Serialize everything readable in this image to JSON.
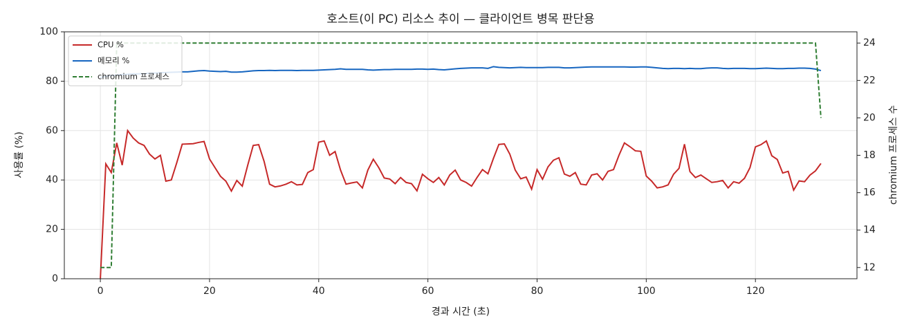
{
  "chart_data": {
    "type": "line",
    "title": "호스트(이 PC) 리소스 추이 — 클라이언트 병목 판단용",
    "x_label": "경과 시간 (초)",
    "y_label": "사용률 (%)",
    "y2_label": "chromium 프로세스 수",
    "xlim": [
      -6.6,
      138.6
    ],
    "xticks": [
      0,
      20,
      40,
      60,
      80,
      100,
      120
    ],
    "ylim": [
      0,
      100
    ],
    "yticks": [
      0,
      20,
      40,
      60,
      80,
      100
    ],
    "y2lim": [
      11.4,
      24.6
    ],
    "y2ticks": [
      12,
      14,
      16,
      18,
      20,
      22,
      24
    ],
    "grid": true,
    "legend": "upper-left",
    "series": [
      {
        "name": "CPU %",
        "color": "#c62828",
        "values": [
          0,
          46.5,
          43,
          55,
          46,
          60,
          57,
          55,
          54,
          50.5,
          48.5,
          50,
          39.5,
          40,
          47,
          54.5,
          54.6,
          54.7,
          55.2,
          55.6,
          48.5,
          45,
          41.5,
          39.5,
          35.5,
          39.8,
          37.5,
          46,
          54,
          54.3,
          47.5,
          38.3,
          37.2,
          37.6,
          38.3,
          39.3,
          38,
          38.2,
          43,
          44.2,
          55.3,
          55.8,
          50,
          51.5,
          44,
          38.3,
          38.8,
          39.2,
          36.8,
          44,
          48.4,
          45,
          40.8,
          40.4,
          38.5,
          41,
          39,
          38.5,
          35.6,
          42.3,
          40.5,
          39,
          41,
          38,
          42,
          44,
          40,
          39,
          37.5,
          41,
          44.2,
          42.5,
          48.7,
          54.4,
          54.6,
          50.5,
          44,
          40.5,
          41.2,
          36.3,
          44.2,
          40.3,
          45.3,
          48,
          49,
          42.4,
          41.5,
          43,
          38.3,
          38,
          42,
          42.5,
          40,
          43.5,
          44.2,
          50,
          55,
          53.5,
          51.8,
          51.6,
          41.6,
          39.5,
          36.8,
          37.2,
          38,
          42.3,
          44.7,
          54.5,
          43.4,
          41,
          42,
          40.5,
          39,
          39.3,
          39.8,
          36.8,
          39.3,
          38.7,
          40.7,
          45,
          53.4,
          54.3,
          55.8,
          49.8,
          48.3,
          42.8,
          43.5,
          35.9,
          39.6,
          39.3,
          42,
          43.7,
          46.7
        ]
      },
      {
        "name": "메모리 %",
        "color": "#1565c0",
        "values": [
          81.5,
          82,
          82.3,
          82.5,
          82.7,
          82.8,
          83,
          83,
          83.1,
          83.2,
          83.3,
          83.4,
          83.5,
          83.6,
          83.7,
          83.8,
          83.8,
          84,
          84.2,
          84.3,
          84.1,
          84,
          83.9,
          84,
          83.7,
          83.7,
          83.8,
          84,
          84.2,
          84.3,
          84.3,
          84.4,
          84.3,
          84.4,
          84.4,
          84.4,
          84.3,
          84.4,
          84.4,
          84.4,
          84.5,
          84.6,
          84.7,
          84.8,
          85,
          84.8,
          84.8,
          84.8,
          84.8,
          84.6,
          84.5,
          84.6,
          84.7,
          84.7,
          84.8,
          84.8,
          84.8,
          84.8,
          84.9,
          84.9,
          84.8,
          84.9,
          84.7,
          84.6,
          84.8,
          85,
          85.2,
          85.3,
          85.4,
          85.4,
          85.4,
          85.2,
          85.9,
          85.6,
          85.5,
          85.4,
          85.5,
          85.6,
          85.5,
          85.5,
          85.5,
          85.5,
          85.6,
          85.6,
          85.6,
          85.4,
          85.4,
          85.5,
          85.6,
          85.7,
          85.8,
          85.8,
          85.8,
          85.8,
          85.8,
          85.8,
          85.8,
          85.7,
          85.7,
          85.8,
          85.8,
          85.6,
          85.4,
          85.2,
          85.1,
          85.2,
          85.2,
          85.1,
          85.2,
          85.1,
          85.1,
          85.3,
          85.4,
          85.4,
          85.2,
          85.1,
          85.2,
          85.2,
          85.2,
          85.1,
          85.1,
          85.2,
          85.3,
          85.2,
          85.1,
          85.1,
          85.2,
          85.2,
          85.3,
          85.3,
          85.2,
          84.9,
          84.3
        ]
      },
      {
        "name": "chromium 프로세스",
        "color": "#2e7d32",
        "axis": "y2",
        "dashed": true,
        "values": [
          12,
          12,
          12,
          24,
          24,
          24,
          24,
          24,
          24,
          24,
          24,
          24,
          24,
          24,
          24,
          24,
          24,
          24,
          24,
          24,
          24,
          24,
          24,
          24,
          24,
          24,
          24,
          24,
          24,
          24,
          24,
          24,
          24,
          24,
          24,
          24,
          24,
          24,
          24,
          24,
          24,
          24,
          24,
          24,
          24,
          24,
          24,
          24,
          24,
          24,
          24,
          24,
          24,
          24,
          24,
          24,
          24,
          24,
          24,
          24,
          24,
          24,
          24,
          24,
          24,
          24,
          24,
          24,
          24,
          24,
          24,
          24,
          24,
          24,
          24,
          24,
          24,
          24,
          24,
          24,
          24,
          24,
          24,
          24,
          24,
          24,
          24,
          24,
          24,
          24,
          24,
          24,
          24,
          24,
          24,
          24,
          24,
          24,
          24,
          24,
          24,
          24,
          24,
          24,
          24,
          24,
          24,
          24,
          24,
          24,
          24,
          24,
          24,
          24,
          24,
          24,
          24,
          24,
          24,
          24,
          24,
          24,
          24,
          24,
          24,
          24,
          24,
          24,
          24,
          24,
          24,
          24,
          20
        ]
      }
    ]
  }
}
